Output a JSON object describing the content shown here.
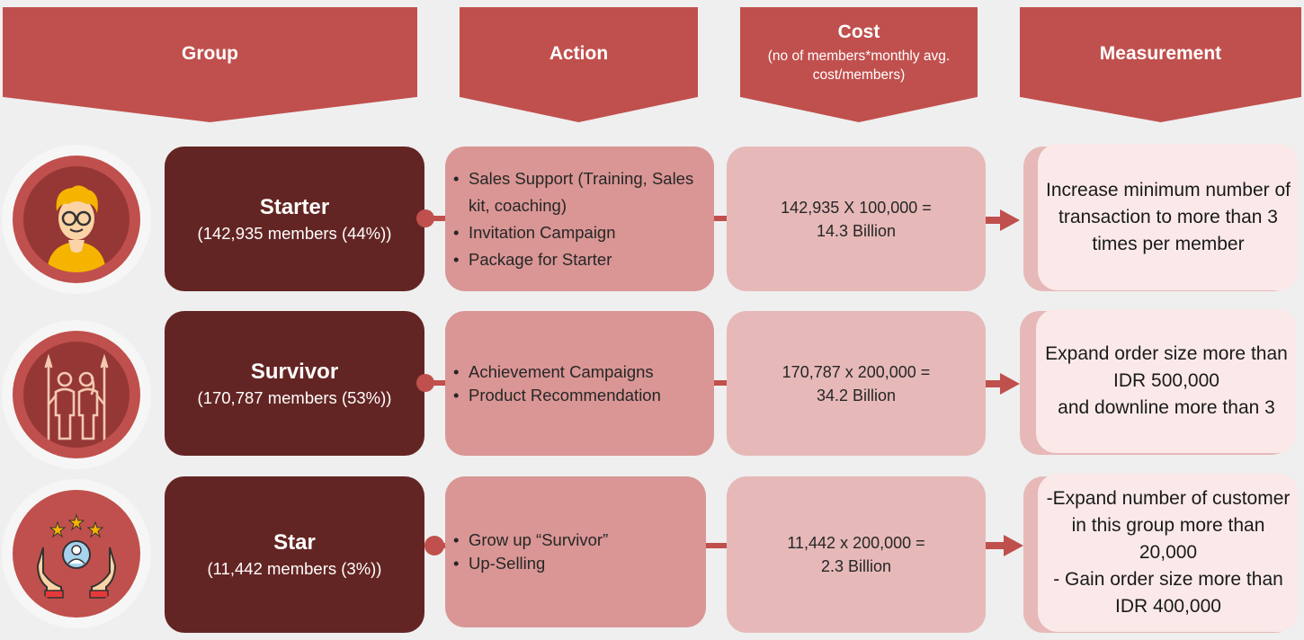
{
  "headers": {
    "group": "Group",
    "action": "Action",
    "cost": "Cost",
    "cost_sub": "(no of members*monthly avg. cost/members)",
    "measurement": "Measurement"
  },
  "rows": [
    {
      "icon": "young-person-icon",
      "name": "Starter",
      "members": "(142,935 members (44%))",
      "actions": [
        "Sales Support (Training, Sales kit, coaching)",
        "Invitation Campaign",
        "Package for Starter"
      ],
      "cost_line1": "142,935 X 100,000 =",
      "cost_line2": "14.3 Billion",
      "measurement": "Increase minimum number of transaction to more than 3 times per member"
    },
    {
      "icon": "survivors-with-spears-icon",
      "name": "Survivor",
      "members": "(170,787 members (53%))",
      "actions": [
        "Achievement Campaigns",
        "Product Recommendation"
      ],
      "cost_line1": "170,787 x 200,000 =",
      "cost_line2": "34.2 Billion",
      "measurement": "Expand order size more than IDR 500,000\nand downline more than 3"
    },
    {
      "icon": "hands-star-person-icon",
      "name": "Star",
      "members": "(11,442 members (3%))",
      "actions": [
        "Grow up “Survivor”",
        "Up-Selling"
      ],
      "cost_line1": "11,442 x 200,000 =",
      "cost_line2": "2.3 Billion",
      "measurement": "-Expand number of customer in this group more than 20,000\n- Gain order size more than IDR 400,000"
    }
  ],
  "colors": {
    "header": "#c0504d",
    "group_box": "#632523",
    "action_box": "#d99694",
    "cost_box": "#e6b9b8",
    "measurement_box": "#fbe9e9"
  }
}
